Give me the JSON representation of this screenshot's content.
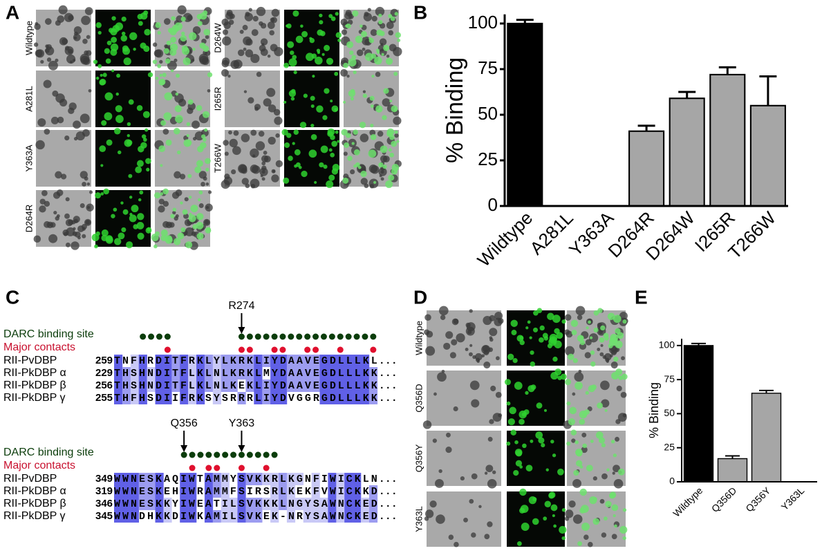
{
  "panel_labels": [
    "A",
    "B",
    "C",
    "D",
    "E"
  ],
  "panel_a": {
    "row_labels": [
      "Wildtype",
      "A281L",
      "Y363A",
      "D264R",
      "D264W",
      "I265R",
      "T266W"
    ]
  },
  "panel_d": {
    "row_labels": [
      "Wildtype",
      "Q356D",
      "Q356Y",
      "Y363L"
    ]
  },
  "alignment": {
    "track_labels": [
      "DARC binding site",
      "Major contacts"
    ],
    "blocks": [
      {
        "arrows": [
          "R274"
        ],
        "continuation": "...",
        "rows": [
          {
            "name": "RII-PvDBP",
            "start": 259,
            "sequence": "TNFHRDITFRKLYLKRKLIYDAAVEGDLLLKL"
          },
          {
            "name": "RII-PkDBP α",
            "start": 229,
            "sequence": "THSHNDITFLKLNLKRKLMYDAAVEGDLLLKK"
          },
          {
            "name": "RII-PkDBP β",
            "start": 256,
            "sequence": "THSHNDITFLKLNLKEKLIYDAAVEGDLLLKK"
          },
          {
            "name": "RII-PkDBP γ",
            "start": 255,
            "sequence": "THFHSDIIFRKSYSRRRLIYDVGGRGDLLLKK"
          }
        ]
      },
      {
        "arrows": [
          "Q356",
          "Y363"
        ],
        "continuation": "...",
        "rows": [
          {
            "name": "RII-PvDBP",
            "start": 349,
            "sequence": "WWNESKAQIWTAMMYSVKKRLKGNFIWICKLN"
          },
          {
            "name": "RII-PkDBP α",
            "start": 319,
            "sequence": "WWNESKEHIWRAMMFSIRSRLKEKFVWICKKD"
          },
          {
            "name": "RII-PkDBP β",
            "start": 346,
            "sequence": "WWNESKKYIWEATILSVKKKLNGYSAWNCKED"
          },
          {
            "name": "RII-PkDBP γ",
            "start": 345,
            "sequence": "WWNDHKKDIWKAMILSVKEK-NRYSAWNCKED"
          }
        ]
      }
    ]
  },
  "chart_data": [
    {
      "type": "bar",
      "ylabel": "% Binding",
      "categories": [
        "Wildtype",
        "A281L",
        "Y363A",
        "D264R",
        "D264W",
        "I265R",
        "T266W"
      ],
      "values": [
        100,
        0,
        0,
        41,
        59,
        72,
        55
      ],
      "errors": [
        2,
        0,
        0,
        3,
        3.5,
        4,
        16
      ],
      "colors": [
        "#000000",
        "#a6a6a6",
        "#a6a6a6",
        "#a6a6a6",
        "#a6a6a6",
        "#a6a6a6",
        "#a6a6a6"
      ],
      "ylim": [
        0,
        105
      ],
      "yticks": [
        0,
        25,
        50,
        75,
        100
      ]
    },
    {
      "type": "bar",
      "ylabel": "% Binding",
      "categories": [
        "Wildtype",
        "Q356D",
        "Q356Y",
        "Y363L"
      ],
      "values": [
        100,
        17,
        65,
        0
      ],
      "errors": [
        1.5,
        2,
        2,
        0
      ],
      "colors": [
        "#000000",
        "#a6a6a6",
        "#a6a6a6",
        "#a6a6a6"
      ],
      "ylim": [
        0,
        105
      ],
      "yticks": [
        0,
        25,
        50,
        75,
        100
      ]
    }
  ]
}
